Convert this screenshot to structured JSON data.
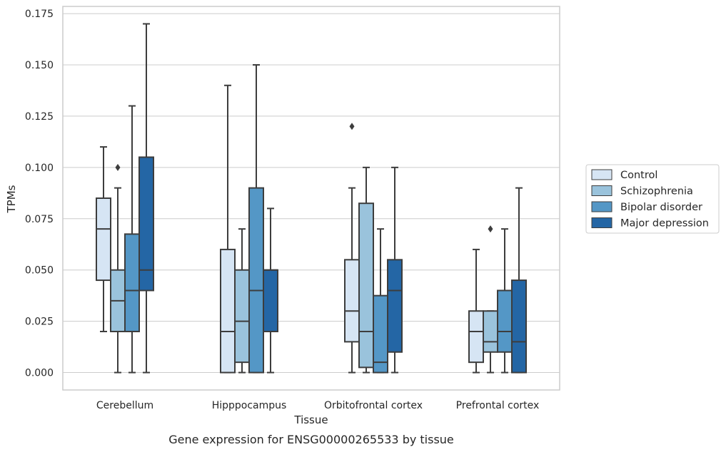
{
  "caption": "Gene expression for ENSG00000265533 by tissue",
  "chart_data": {
    "type": "box",
    "xlabel": "Tissue",
    "ylabel": "TPMs",
    "ylim": [
      -0.0085,
      0.1785
    ],
    "yticks": [
      "0.000",
      "0.025",
      "0.050",
      "0.075",
      "0.100",
      "0.125",
      "0.150",
      "0.175"
    ],
    "ytick_values": [
      0,
      0.025,
      0.05,
      0.075,
      0.1,
      0.125,
      0.15,
      0.175
    ],
    "grid": true,
    "legend_position": "right",
    "categories": [
      "Cerebellum",
      "Hipppocampus",
      "Orbitofrontal cortex",
      "Prefrontal cortex"
    ],
    "series": [
      {
        "name": "Control",
        "color": "#d6e5f4",
        "boxes": [
          {
            "whislo": 0.02,
            "q1": 0.045,
            "med": 0.07,
            "q3": 0.085,
            "whishi": 0.11,
            "fliers": []
          },
          {
            "whislo": 0.0,
            "q1": 0.0,
            "med": 0.02,
            "q3": 0.06,
            "whishi": 0.14,
            "fliers": []
          },
          {
            "whislo": 0.0,
            "q1": 0.015,
            "med": 0.03,
            "q3": 0.055,
            "whishi": 0.09,
            "fliers": [
              0.12
            ]
          },
          {
            "whislo": 0.0,
            "q1": 0.005,
            "med": 0.02,
            "q3": 0.03,
            "whishi": 0.06,
            "fliers": []
          }
        ]
      },
      {
        "name": "Schizophrenia",
        "color": "#9ac3dc",
        "boxes": [
          {
            "whislo": 0.0,
            "q1": 0.02,
            "med": 0.035,
            "q3": 0.05,
            "whishi": 0.09,
            "fliers": [
              0.1
            ]
          },
          {
            "whislo": 0.0,
            "q1": 0.005,
            "med": 0.025,
            "q3": 0.05,
            "whishi": 0.07,
            "fliers": []
          },
          {
            "whislo": 0.0,
            "q1": 0.0025,
            "med": 0.02,
            "q3": 0.0825,
            "whishi": 0.1,
            "fliers": []
          },
          {
            "whislo": 0.0,
            "q1": 0.01,
            "med": 0.015,
            "q3": 0.03,
            "whishi": 0.03,
            "fliers": [
              0.07
            ]
          }
        ]
      },
      {
        "name": "Bipolar disorder",
        "color": "#5497c6",
        "boxes": [
          {
            "whislo": 0.0,
            "q1": 0.02,
            "med": 0.04,
            "q3": 0.0675,
            "whishi": 0.13,
            "fliers": []
          },
          {
            "whislo": 0.0,
            "q1": 0.0,
            "med": 0.04,
            "q3": 0.09,
            "whishi": 0.15,
            "fliers": []
          },
          {
            "whislo": 0.0,
            "q1": 0.0,
            "med": 0.005,
            "q3": 0.0375,
            "whishi": 0.07,
            "fliers": []
          },
          {
            "whislo": 0.0,
            "q1": 0.01,
            "med": 0.02,
            "q3": 0.04,
            "whishi": 0.07,
            "fliers": []
          }
        ]
      },
      {
        "name": "Major depression",
        "color": "#2466a5",
        "boxes": [
          {
            "whislo": 0.0,
            "q1": 0.04,
            "med": 0.05,
            "q3": 0.105,
            "whishi": 0.17,
            "fliers": []
          },
          {
            "whislo": 0.0,
            "q1": 0.02,
            "med": 0.05,
            "q3": 0.05,
            "whishi": 0.08,
            "fliers": []
          },
          {
            "whislo": 0.0,
            "q1": 0.01,
            "med": 0.04,
            "q3": 0.055,
            "whishi": 0.1,
            "fliers": []
          },
          {
            "whislo": 0.0,
            "q1": 0.0,
            "med": 0.015,
            "q3": 0.045,
            "whishi": 0.09,
            "fliers": []
          }
        ]
      }
    ]
  }
}
